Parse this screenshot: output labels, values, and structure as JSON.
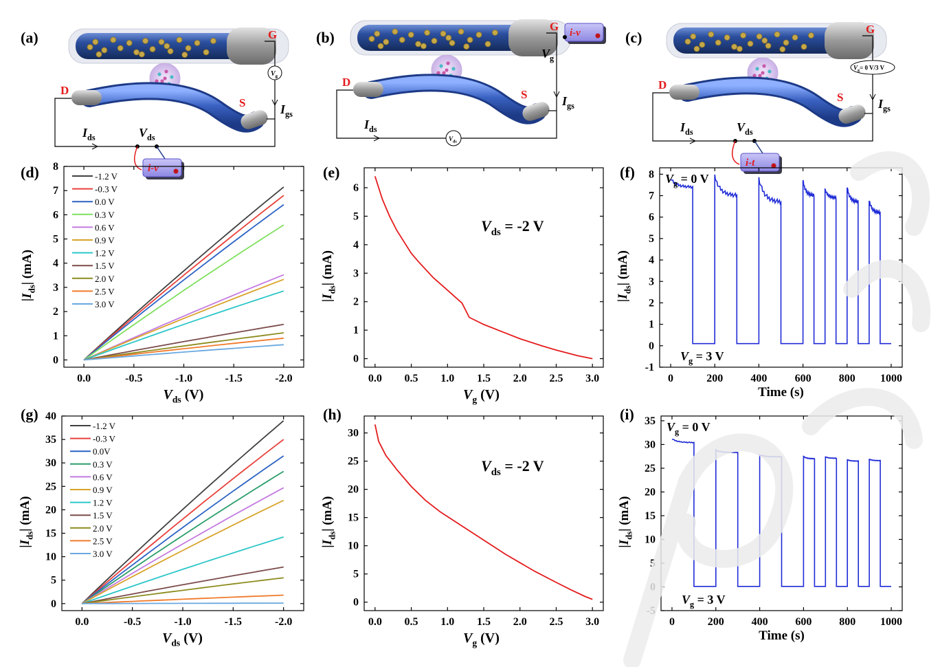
{
  "diagrams": [
    {
      "panel_label": "(a)",
      "terminals": {
        "gate": "G",
        "drain": "D",
        "source": "S"
      },
      "labels": {
        "ids": "I",
        "ids_sub": "ds",
        "vds": "V",
        "vds_sub": "ds",
        "igs": "I",
        "igs_sub": "gs",
        "meter": "i-v",
        "source_symbol": "V",
        "source_symbol_sub": "g"
      }
    },
    {
      "panel_label": "(b)",
      "terminals": {
        "gate": "G",
        "drain": "D",
        "source": "S"
      },
      "labels": {
        "ids": "I",
        "ids_sub": "ds",
        "vg": "V",
        "vg_sub": "g",
        "igs": "I",
        "igs_sub": "gs",
        "meter": "i-v",
        "source_symbol": "V",
        "source_symbol_sub": "ds"
      }
    },
    {
      "panel_label": "(c)",
      "terminals": {
        "gate": "G",
        "drain": "D",
        "source": "S"
      },
      "labels": {
        "ids": "I",
        "ids_sub": "ds",
        "vds": "V",
        "vds_sub": "ds",
        "igs": "I",
        "igs_sub": "gs",
        "meter": "i-t",
        "source_symbol": "V",
        "source_symbol_sub": "g",
        "source_symbol_tail": "= 0 V/3 V"
      }
    }
  ],
  "chart_data": [
    {
      "panel_label": "(d)",
      "type": "line",
      "xlabel": "V",
      "xlabel_sub": "ds",
      "xlabel_unit": " (V)",
      "ylabel": "|I",
      "ylabel_sub": "ds",
      "ylabel_unit": "| (mA)",
      "xlim": [
        0.2,
        -2.2
      ],
      "ylim": [
        -0.3,
        8
      ],
      "x_ticks": [
        0.0,
        -0.5,
        -1.0,
        -1.5,
        -2.0
      ],
      "x_tick_labels": [
        "0.0",
        "-0.5",
        "-1.0",
        "-1.5",
        "-2.0"
      ],
      "y_ticks": [
        0,
        1,
        2,
        3,
        4,
        5,
        6,
        7,
        8
      ],
      "y_tick_labels": [
        "0",
        "1",
        "2",
        "3",
        "4",
        "5",
        "6",
        "7",
        "8"
      ],
      "legend_position": "top-left",
      "series": [
        {
          "name": "-1.2 V",
          "color": "#404040",
          "x": [
            0,
            -2
          ],
          "y": [
            0,
            7.15
          ]
        },
        {
          "name": "-0.3 V",
          "color": "#e8403a",
          "x": [
            0,
            -2
          ],
          "y": [
            0,
            6.8
          ]
        },
        {
          "name": "0.0 V",
          "color": "#2a62c4",
          "x": [
            0,
            -2
          ],
          "y": [
            0,
            6.42
          ]
        },
        {
          "name": "0.3 V",
          "color": "#7fe05f",
          "x": [
            0,
            -2
          ],
          "y": [
            0,
            5.58
          ]
        },
        {
          "name": "0.6 V",
          "color": "#c47ae0",
          "x": [
            0,
            -2
          ],
          "y": [
            0,
            3.52
          ]
        },
        {
          "name": "0.9 V",
          "color": "#d9a32a",
          "x": [
            0,
            -2
          ],
          "y": [
            0,
            3.33
          ]
        },
        {
          "name": "1.2 V",
          "color": "#2bc6c9",
          "x": [
            0,
            -2
          ],
          "y": [
            0,
            2.85
          ]
        },
        {
          "name": "1.5 V",
          "color": "#7b4a4a",
          "x": [
            0,
            -2
          ],
          "y": [
            0,
            1.47
          ]
        },
        {
          "name": "2.0 V",
          "color": "#8c8c1f",
          "x": [
            0,
            -2
          ],
          "y": [
            0,
            1.12
          ]
        },
        {
          "name": "2.5 V",
          "color": "#f07a2a",
          "x": [
            0,
            -2
          ],
          "y": [
            0,
            0.9
          ]
        },
        {
          "name": "3.0 V",
          "color": "#6aa8e0",
          "x": [
            0,
            -2
          ],
          "y": [
            0,
            0.63
          ]
        }
      ]
    },
    {
      "panel_label": "(e)",
      "type": "line",
      "xlabel": "V",
      "xlabel_sub": "g",
      "xlabel_unit": " (V)",
      "ylabel": "|I",
      "ylabel_sub": "ds",
      "ylabel_unit": "| (mA)",
      "xlim": [
        -0.15,
        3.15
      ],
      "ylim": [
        -0.3,
        6.7
      ],
      "x_ticks": [
        0.0,
        0.5,
        1.0,
        1.5,
        2.0,
        2.5,
        3.0
      ],
      "x_tick_labels": [
        "0.0",
        "0.5",
        "1.0",
        "1.5",
        "2.0",
        "2.5",
        "3.0"
      ],
      "y_ticks": [
        0,
        1,
        2,
        3,
        4,
        5,
        6
      ],
      "y_tick_labels": [
        "0",
        "1",
        "2",
        "3",
        "4",
        "5",
        "6"
      ],
      "annotation": {
        "main": "V",
        "sub": "ds",
        "tail": " = -2 V"
      },
      "series": [
        {
          "color": "#e41a1c",
          "x": [
            0,
            0.1,
            0.2,
            0.3,
            0.4,
            0.5,
            0.6,
            0.8,
            1.0,
            1.2,
            1.3,
            1.5,
            1.8,
            2.0,
            2.3,
            2.5,
            2.8,
            3.0
          ],
          "y": [
            6.4,
            5.6,
            5.0,
            4.5,
            4.1,
            3.7,
            3.4,
            2.85,
            2.4,
            1.95,
            1.45,
            1.2,
            0.9,
            0.7,
            0.45,
            0.3,
            0.1,
            0.0
          ]
        }
      ]
    },
    {
      "panel_label": "(f)",
      "type": "line",
      "xlabel": "Time (s)",
      "ylabel": "|I",
      "ylabel_sub": "ds",
      "ylabel_unit": "| (mA)",
      "xlim": [
        -50,
        1050
      ],
      "ylim": [
        -1,
        8.3
      ],
      "x_ticks": [
        0,
        200,
        400,
        600,
        800,
        1000
      ],
      "x_tick_labels": [
        "0",
        "200",
        "400",
        "600",
        "800",
        "1000"
      ],
      "y_ticks": [
        -1,
        0,
        1,
        2,
        3,
        4,
        5,
        6,
        7,
        8
      ],
      "y_tick_labels": [
        "-1",
        "0",
        "1",
        "2",
        "3",
        "4",
        "5",
        "6",
        "7",
        "8"
      ],
      "annotations": [
        {
          "main": "V",
          "sub": "g",
          "tail": " = 0 V",
          "position": "top-left"
        },
        {
          "main": "V",
          "sub": "g",
          "tail": " = 3 V",
          "position": "bottom-left"
        }
      ],
      "off_level": 0.1,
      "on_segments": [
        {
          "start": 0,
          "end": 100,
          "top": 7.8,
          "settle": 7.4
        },
        {
          "start": 200,
          "end": 300,
          "top": 7.9,
          "settle": 7.0
        },
        {
          "start": 400,
          "end": 500,
          "top": 7.8,
          "settle": 6.7
        },
        {
          "start": 600,
          "end": 650,
          "top": 7.7,
          "settle": 7.0
        },
        {
          "start": 700,
          "end": 750,
          "top": 7.3,
          "settle": 6.9
        },
        {
          "start": 800,
          "end": 850,
          "top": 7.4,
          "settle": 6.7
        },
        {
          "start": 900,
          "end": 950,
          "top": 6.8,
          "settle": 6.2
        }
      ],
      "series": [
        {
          "color": "#1f2bd6"
        }
      ]
    },
    {
      "panel_label": "(g)",
      "type": "line",
      "xlabel": "V",
      "xlabel_sub": "ds",
      "xlabel_unit": " (V)",
      "ylabel": "|I",
      "ylabel_sub": "ds",
      "ylabel_unit": "| (mA)",
      "xlim": [
        0.2,
        -2.2
      ],
      "ylim": [
        -1.5,
        40
      ],
      "x_ticks": [
        0.0,
        -0.5,
        -1.0,
        -1.5,
        -2.0
      ],
      "x_tick_labels": [
        "0.0",
        "-0.5",
        "-1.0",
        "-1.5",
        "-2.0"
      ],
      "y_ticks": [
        0,
        5,
        10,
        15,
        20,
        25,
        30,
        35,
        40
      ],
      "y_tick_labels": [
        "0",
        "5",
        "10",
        "15",
        "20",
        "25",
        "30",
        "35",
        "40"
      ],
      "legend_position": "top-left",
      "series": [
        {
          "name": "-1.2 V",
          "color": "#404040",
          "x": [
            0,
            -2
          ],
          "y": [
            0,
            39
          ]
        },
        {
          "name": "-0.3 V",
          "color": "#e8403a",
          "x": [
            0,
            -2
          ],
          "y": [
            0,
            35
          ]
        },
        {
          "name": "0.0V",
          "color": "#2a62c4",
          "x": [
            0,
            -2
          ],
          "y": [
            0,
            31.5
          ]
        },
        {
          "name": "0.3 V",
          "color": "#2a9e6a",
          "x": [
            0,
            -2
          ],
          "y": [
            0,
            28.2
          ]
        },
        {
          "name": "0.6 V",
          "color": "#c47ae0",
          "x": [
            0,
            -2
          ],
          "y": [
            0,
            24.7
          ]
        },
        {
          "name": "0.9 V",
          "color": "#d9a32a",
          "x": [
            0,
            -2
          ],
          "y": [
            0,
            22
          ]
        },
        {
          "name": "1.2 V",
          "color": "#2bc6c9",
          "x": [
            0,
            -2
          ],
          "y": [
            0,
            14.2
          ]
        },
        {
          "name": "1.5 V",
          "color": "#7b4a4a",
          "x": [
            0,
            -2
          ],
          "y": [
            0,
            7.8
          ]
        },
        {
          "name": "2.0 V",
          "color": "#8c8c1f",
          "x": [
            0,
            -2
          ],
          "y": [
            0,
            5.5
          ]
        },
        {
          "name": "2.5 V",
          "color": "#f07a2a",
          "x": [
            0,
            -2
          ],
          "y": [
            0,
            1.8
          ]
        },
        {
          "name": "3.0 V",
          "color": "#6aa8e0",
          "x": [
            0,
            -2
          ],
          "y": [
            0,
            0.1
          ]
        }
      ]
    },
    {
      "panel_label": "(h)",
      "type": "line",
      "xlabel": "V",
      "xlabel_sub": "g",
      "xlabel_unit": " (V)",
      "ylabel": "|I",
      "ylabel_sub": "ds",
      "ylabel_unit": "| (mA)",
      "xlim": [
        -0.15,
        3.15
      ],
      "ylim": [
        -1.5,
        33
      ],
      "x_ticks": [
        0.0,
        0.5,
        1.0,
        1.5,
        2.0,
        2.5,
        3.0
      ],
      "x_tick_labels": [
        "0.0",
        "0.5",
        "1.0",
        "1.5",
        "2.0",
        "2.5",
        "3.0"
      ],
      "y_ticks": [
        0,
        5,
        10,
        15,
        20,
        25,
        30
      ],
      "y_tick_labels": [
        "0",
        "5",
        "10",
        "15",
        "20",
        "25",
        "30"
      ],
      "annotation": {
        "main": "V",
        "sub": "ds",
        "tail": " = -2 V"
      },
      "series": [
        {
          "color": "#e41a1c",
          "x": [
            0,
            0.05,
            0.15,
            0.3,
            0.5,
            0.7,
            0.9,
            1.2,
            1.5,
            1.8,
            2.0,
            2.2,
            2.5,
            2.7,
            2.9,
            3.0
          ],
          "y": [
            31.5,
            28.5,
            26,
            23.5,
            20.5,
            18,
            16,
            13.5,
            11,
            8.5,
            7,
            5.5,
            3.5,
            2.2,
            1.0,
            0.5
          ]
        }
      ]
    },
    {
      "panel_label": "(i)",
      "type": "line",
      "xlabel": "Time (s)",
      "ylabel": "|I",
      "ylabel_sub": "ds",
      "ylabel_unit": "| (mA)",
      "xlim": [
        -50,
        1050
      ],
      "ylim": [
        -5,
        36
      ],
      "x_ticks": [
        0,
        200,
        400,
        600,
        800,
        1000
      ],
      "x_tick_labels": [
        "0",
        "200",
        "400",
        "600",
        "800",
        "1000"
      ],
      "y_ticks": [
        -5,
        0,
        5,
        10,
        15,
        20,
        25,
        30,
        35
      ],
      "y_tick_labels": [
        "-5",
        "0",
        "5",
        "10",
        "15",
        "20",
        "25",
        "30",
        "35"
      ],
      "annotations": [
        {
          "main": "V",
          "sub": "g",
          "tail": " = 0 V",
          "position": "top-left"
        },
        {
          "main": "V",
          "sub": "g",
          "tail": " = 3 V",
          "position": "bottom-left"
        }
      ],
      "off_level": 0.1,
      "on_segments": [
        {
          "start": 0,
          "end": 100,
          "top": 31.2,
          "settle": 30.4
        },
        {
          "start": 200,
          "end": 300,
          "top": 28.8,
          "settle": 28.3
        },
        {
          "start": 400,
          "end": 500,
          "top": 27.8,
          "settle": 27.4
        },
        {
          "start": 600,
          "end": 650,
          "top": 27.5,
          "settle": 27.0
        },
        {
          "start": 700,
          "end": 750,
          "top": 27.4,
          "settle": 27.1
        },
        {
          "start": 800,
          "end": 850,
          "top": 26.8,
          "settle": 26.5
        },
        {
          "start": 900,
          "end": 950,
          "top": 26.9,
          "settle": 26.6
        }
      ],
      "series": [
        {
          "color": "#1f2bd6"
        }
      ]
    }
  ]
}
